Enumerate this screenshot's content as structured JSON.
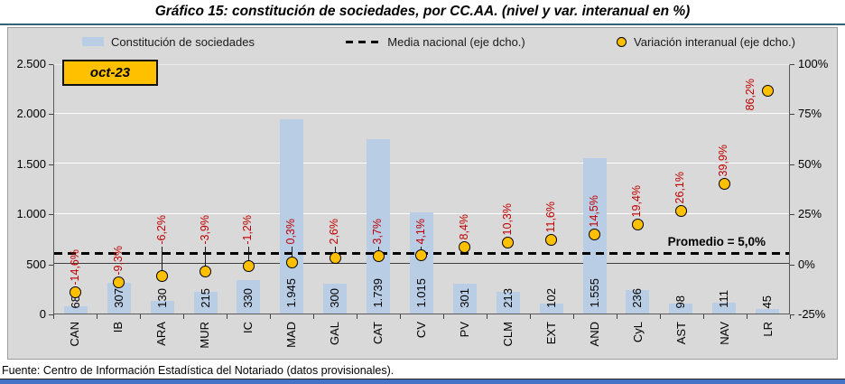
{
  "title": "Gráfico 15: constitución de sociedades, por CC.AA. (nivel y var. interanual en %)",
  "period_badge": "oct-23",
  "legend": [
    {
      "label": "Constitución de sociedades",
      "swatch": "bar-swatch"
    },
    {
      "label": "Media nacional (eje dcho.)",
      "swatch": "dashed-line-swatch"
    },
    {
      "label": "Variación interanual (eje dcho.)",
      "swatch": "marker-swatch"
    }
  ],
  "annotation": "Promedio = 5,0%",
  "footer": "Fuente: Centro de Información Estadística del Notariado (datos provisionales).",
  "colors": {
    "bar_fill": "#B9CDE5",
    "marker_fill": "#FFC000",
    "marker_border": "#000000",
    "average_line": "#000000",
    "variation_label": "#C00000",
    "plot_background": "#D9D9D9",
    "gridline": "#FFFFFF",
    "zero_line": "#3f3f3f",
    "badge_fill": "#FFC000",
    "accent_bar": "#4472C4"
  },
  "chart_data": {
    "type": "bar",
    "subtype": "combo bar + scatter markers, dual axis",
    "title": "Gráfico 15: constitución de sociedades, por CC.AA. (nivel y var. interanual en %)",
    "period": "oct-23",
    "categories": [
      "CAN",
      "IB",
      "ARA",
      "MUR",
      "IC",
      "MAD",
      "GAL",
      "CAT",
      "CV",
      "PV",
      "CLM",
      "EXT",
      "AND",
      "CyL",
      "AST",
      "NAV",
      "LR"
    ],
    "series": [
      {
        "name": "Constitución de sociedades",
        "type": "bar",
        "axis": "left",
        "values": [
          68,
          307,
          130,
          215,
          330,
          1945,
          300,
          1739,
          1015,
          301,
          213,
          102,
          1555,
          236,
          98,
          111,
          45
        ]
      },
      {
        "name": "Variación interanual (eje dcho.)",
        "type": "scatter",
        "axis": "right",
        "values": [
          -14.6,
          -9.3,
          -6.2,
          -3.9,
          -1.2,
          0.3,
          2.6,
          3.7,
          4.1,
          8.4,
          10.3,
          11.6,
          14.5,
          19.4,
          26.1,
          39.9,
          86.2
        ]
      },
      {
        "name": "Media nacional (eje dcho.)",
        "type": "dashed-line",
        "axis": "right",
        "value": 5.0
      }
    ],
    "national_average": 5.0,
    "left_axis": {
      "min": 0,
      "max": 2500,
      "ticks": [
        "2.500",
        "2.000",
        "1.500",
        "1.000",
        "500",
        "0"
      ]
    },
    "right_axis": {
      "min": -25,
      "max": 100,
      "ticks": [
        "100%",
        "75%",
        "50%",
        "25%",
        "0%",
        "-25%"
      ]
    },
    "grid": true,
    "legend_position": "top",
    "points": [
      {
        "ca": "CAN",
        "value": 68,
        "value_label": "68",
        "var": -14.6,
        "var_label": "-14,6%",
        "leader": false,
        "side": "above"
      },
      {
        "ca": "IB",
        "value": 307,
        "value_label": "307",
        "var": -9.3,
        "var_label": "-9,3%",
        "leader": false,
        "side": "above"
      },
      {
        "ca": "ARA",
        "value": 130,
        "value_label": "130",
        "var": -6.2,
        "var_label": "-6,2%",
        "leader": true,
        "side": "above"
      },
      {
        "ca": "MUR",
        "value": 215,
        "value_label": "215",
        "var": -3.9,
        "var_label": "-3,9%",
        "leader": true,
        "side": "above"
      },
      {
        "ca": "IC",
        "value": 330,
        "value_label": "330",
        "var": -1.2,
        "var_label": "-1,2%",
        "leader": true,
        "side": "above"
      },
      {
        "ca": "MAD",
        "value": 1945,
        "value_label": "1.945",
        "var": 0.3,
        "var_label": "0,3%",
        "leader": true,
        "side": "above"
      },
      {
        "ca": "GAL",
        "value": 300,
        "value_label": "300",
        "var": 2.6,
        "var_label": "2,6%",
        "leader": true,
        "side": "above"
      },
      {
        "ca": "CAT",
        "value": 1739,
        "value_label": "1.739",
        "var": 3.7,
        "var_label": "3,7%",
        "leader": true,
        "side": "above"
      },
      {
        "ca": "CV",
        "value": 1015,
        "value_label": "1.015",
        "var": 4.1,
        "var_label": "4,1%",
        "leader": true,
        "side": "above"
      },
      {
        "ca": "PV",
        "value": 301,
        "value_label": "301",
        "var": 8.4,
        "var_label": "8,4%",
        "leader": false,
        "side": "above"
      },
      {
        "ca": "CLM",
        "value": 213,
        "value_label": "213",
        "var": 10.3,
        "var_label": "10,3%",
        "leader": false,
        "side": "above"
      },
      {
        "ca": "EXT",
        "value": 102,
        "value_label": "102",
        "var": 11.6,
        "var_label": "11,6%",
        "leader": false,
        "side": "above"
      },
      {
        "ca": "AND",
        "value": 1555,
        "value_label": "1.555",
        "var": 14.5,
        "var_label": "14,5%",
        "leader": false,
        "side": "above"
      },
      {
        "ca": "CyL",
        "value": 236,
        "value_label": "236",
        "var": 19.4,
        "var_label": "19,4%",
        "leader": false,
        "side": "above"
      },
      {
        "ca": "AST",
        "value": 98,
        "value_label": "98",
        "var": 26.1,
        "var_label": "26,1%",
        "leader": false,
        "side": "above"
      },
      {
        "ca": "NAV",
        "value": 111,
        "value_label": "111",
        "var": 39.9,
        "var_label": "39,9%",
        "leader": false,
        "side": "above"
      },
      {
        "ca": "LR",
        "value": 45,
        "value_label": "45",
        "var": 86.2,
        "var_label": "86,2%",
        "leader": false,
        "side": "left"
      }
    ]
  }
}
